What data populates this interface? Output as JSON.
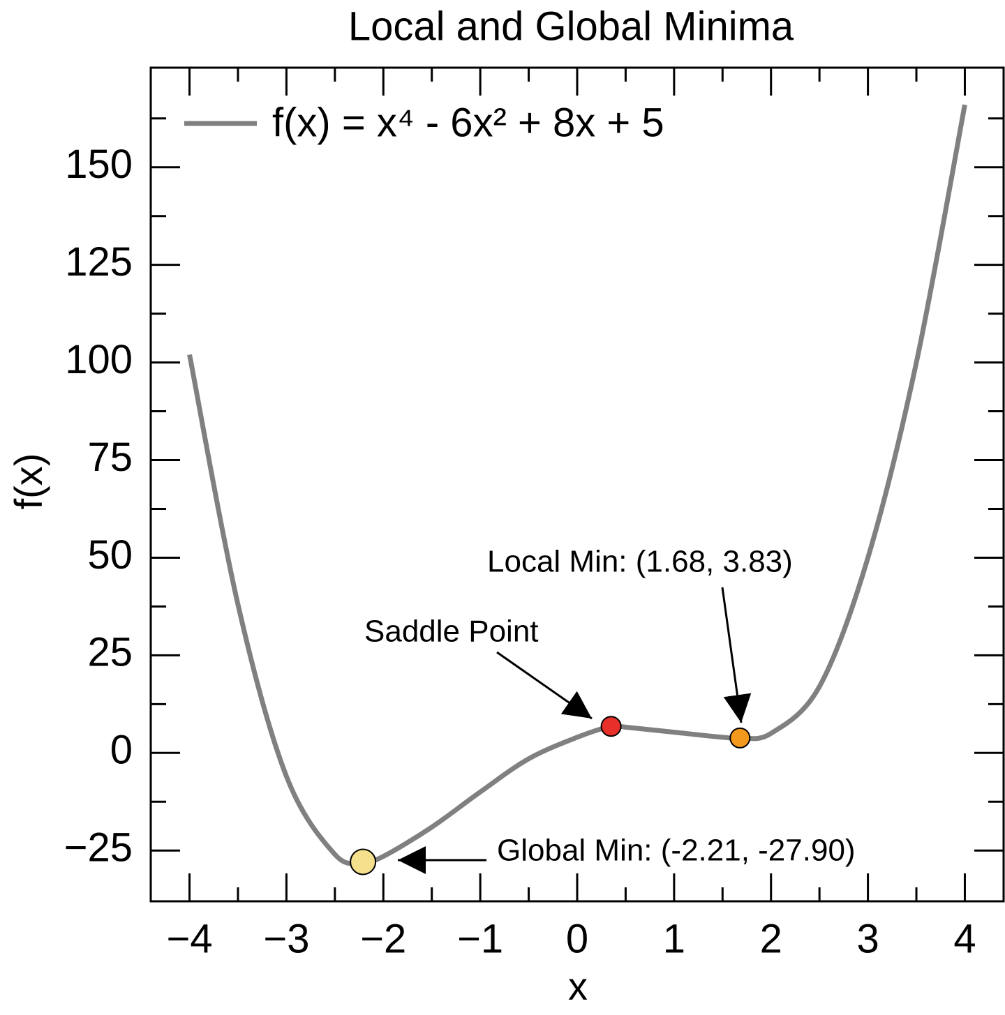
{
  "chart_data": {
    "type": "line",
    "title": "Local and Global Minima",
    "xlabel": "x",
    "ylabel": "f(x)",
    "x": [
      -4,
      -3.5,
      -3,
      -2.5,
      -2.21,
      -2,
      -1.5,
      -1,
      -0.5,
      0,
      0.35,
      0.5,
      1,
      1.5,
      1.68,
      2,
      2.5,
      3,
      3.5,
      4
    ],
    "series": [
      {
        "name": "f(x) = x⁴ - 6x² + 8x + 5",
        "color": "#808080",
        "values": [
          102,
          38,
          -6,
          -26,
          -27.9,
          -26.5,
          -19,
          -10,
          -1.5,
          4,
          6.8,
          6.6,
          5.3,
          4,
          3.83,
          5,
          17,
          50,
          100,
          166
        ]
      }
    ],
    "points": [
      {
        "label": "Global Min: (-2.21, -27.90)",
        "x": -2.21,
        "y": -27.9,
        "color": "#f5e08e"
      },
      {
        "label": "Saddle Point",
        "x": 0.35,
        "y": 6.8,
        "color": "#e8302a"
      },
      {
        "label": "Local Min: (1.68, 3.83)",
        "x": 1.68,
        "y": 3.83,
        "color": "#f39a1e"
      }
    ],
    "xlim": [
      -4.4,
      4.4
    ],
    "ylim": [
      -38,
      175.5
    ],
    "xticks": [
      {
        "value": -4,
        "label": "−4"
      },
      {
        "value": -3,
        "label": "−3"
      },
      {
        "value": -2,
        "label": "−2"
      },
      {
        "value": -1,
        "label": "−1"
      },
      0,
      1,
      2,
      3,
      4
    ],
    "yticks": [
      {
        "value": -25,
        "label": "−25"
      },
      0,
      25,
      50,
      75,
      100,
      125,
      150
    ],
    "xminorticks": [
      -3.5,
      -2.5,
      -1.5,
      -0.5,
      0.5,
      1.5,
      2.5,
      3.5
    ],
    "yminorticks": [
      -12.5,
      12.5,
      37.5,
      62.5,
      87.5,
      112.5,
      137.5,
      162.5
    ],
    "legend": "upper left"
  }
}
